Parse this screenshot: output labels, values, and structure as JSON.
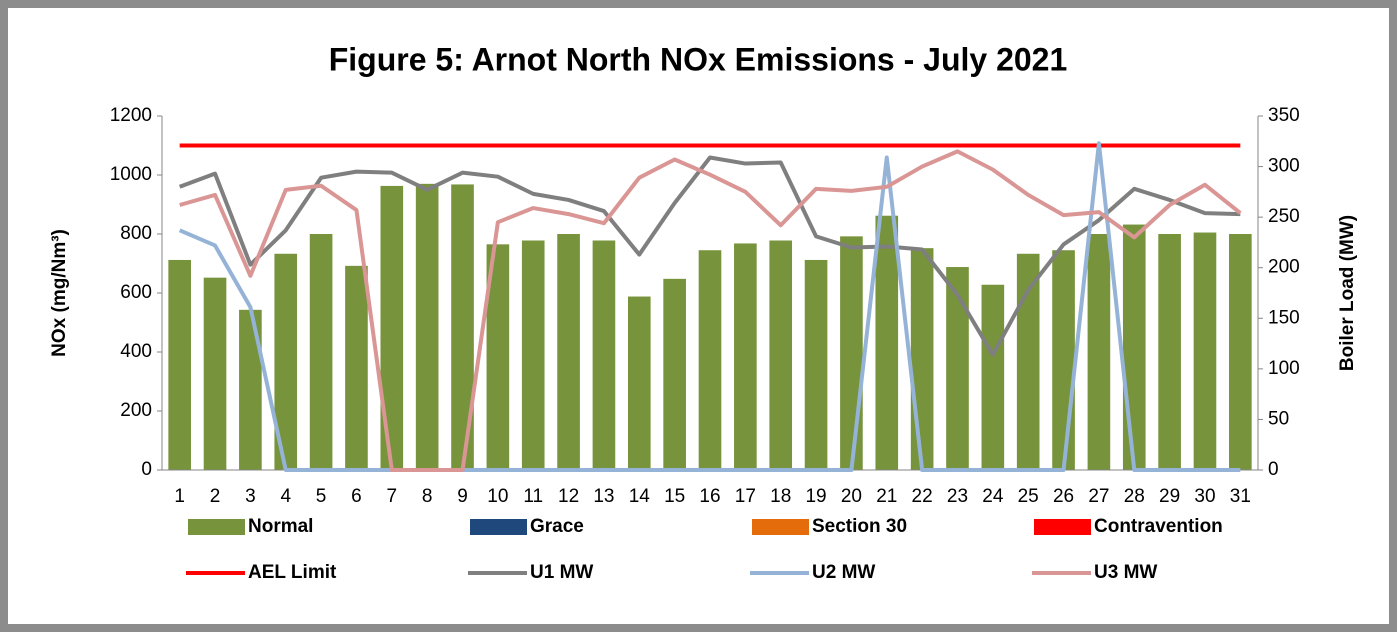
{
  "chart_data": {
    "type": "bar",
    "title": "Figure 5: Arnot North NOx Emissions -  July 2021",
    "y_label": "NOx (mg/Nm³)",
    "y2_label": "Boiler Load (MW)",
    "categories": [
      "1",
      "2",
      "3",
      "4",
      "5",
      "6",
      "7",
      "8",
      "9",
      "10",
      "11",
      "12",
      "13",
      "14",
      "15",
      "16",
      "17",
      "18",
      "19",
      "20",
      "21",
      "22",
      "23",
      "24",
      "25",
      "26",
      "27",
      "28",
      "29",
      "30",
      "31"
    ],
    "series": [
      {
        "name": "Normal",
        "type": "bar",
        "color": "#77933c",
        "values": [
          712,
          652,
          543,
          733,
          800,
          692,
          963,
          970,
          968,
          765,
          778,
          800,
          778,
          588,
          648,
          745,
          768,
          778,
          712,
          792,
          862,
          752,
          688,
          628,
          733,
          745,
          800,
          832,
          800,
          805,
          800
        ]
      },
      {
        "name": "Grace",
        "type": "bar",
        "color": "#1f497d",
        "values": [
          0,
          0,
          0,
          0,
          0,
          0,
          0,
          0,
          0,
          0,
          0,
          0,
          0,
          0,
          0,
          0,
          0,
          0,
          0,
          0,
          0,
          0,
          0,
          0,
          0,
          0,
          0,
          0,
          0,
          0,
          0
        ]
      },
      {
        "name": "Section 30",
        "type": "bar",
        "color": "#e46c0a",
        "values": [
          0,
          0,
          0,
          0,
          0,
          0,
          0,
          0,
          0,
          0,
          0,
          0,
          0,
          0,
          0,
          0,
          0,
          0,
          0,
          0,
          0,
          0,
          0,
          0,
          0,
          0,
          0,
          0,
          0,
          0,
          0
        ]
      },
      {
        "name": "Contravention",
        "type": "bar",
        "color": "#ff0000",
        "values": [
          0,
          0,
          0,
          0,
          0,
          0,
          0,
          0,
          0,
          0,
          0,
          0,
          0,
          0,
          0,
          0,
          0,
          0,
          0,
          0,
          0,
          0,
          0,
          0,
          0,
          0,
          0,
          0,
          0,
          0,
          0
        ]
      },
      {
        "name": "AEL Limit",
        "type": "line",
        "color": "#ff0000",
        "values": [
          1100,
          1100,
          1100,
          1100,
          1100,
          1100,
          1100,
          1100,
          1100,
          1100,
          1100,
          1100,
          1100,
          1100,
          1100,
          1100,
          1100,
          1100,
          1100,
          1100,
          1100,
          1100,
          1100,
          1100,
          1100,
          1100,
          1100,
          1100,
          1100,
          1100,
          1100
        ]
      },
      {
        "name": "U1 MW",
        "type": "line",
        "axis": "y2",
        "color": "#7f7f7f",
        "values": [
          280,
          293,
          203,
          237,
          289,
          295,
          294,
          277,
          294,
          290,
          273,
          267,
          256,
          213,
          264,
          309,
          303,
          304,
          231,
          220,
          221,
          218,
          173,
          114,
          178,
          223,
          247,
          278,
          267,
          254,
          253
        ]
      },
      {
        "name": "U2 MW",
        "type": "line",
        "axis": "y2",
        "color": "#95b3d7",
        "values": [
          237,
          222,
          161,
          0,
          0,
          0,
          0,
          0,
          0,
          0,
          0,
          0,
          0,
          0,
          0,
          0,
          0,
          0,
          0,
          0,
          309,
          0,
          0,
          0,
          0,
          0,
          323,
          0,
          0,
          0,
          0
        ]
      },
      {
        "name": "U3 MW",
        "type": "line",
        "axis": "y2",
        "color": "#d99694",
        "values": [
          262,
          272,
          192,
          277,
          281,
          257,
          0,
          0,
          0,
          245,
          259,
          253,
          244,
          289,
          307,
          292,
          275,
          242,
          278,
          276,
          280,
          300,
          315,
          297,
          272,
          252,
          255,
          230,
          262,
          282,
          254
        ]
      }
    ],
    "ylim": [
      0,
      1200
    ],
    "yticks": [
      0,
      200,
      400,
      600,
      800,
      1000,
      1200
    ],
    "y2lim": [
      0,
      350
    ],
    "y2ticks": [
      0,
      50,
      100,
      150,
      200,
      250,
      300,
      350
    ],
    "legend": "bottom"
  }
}
